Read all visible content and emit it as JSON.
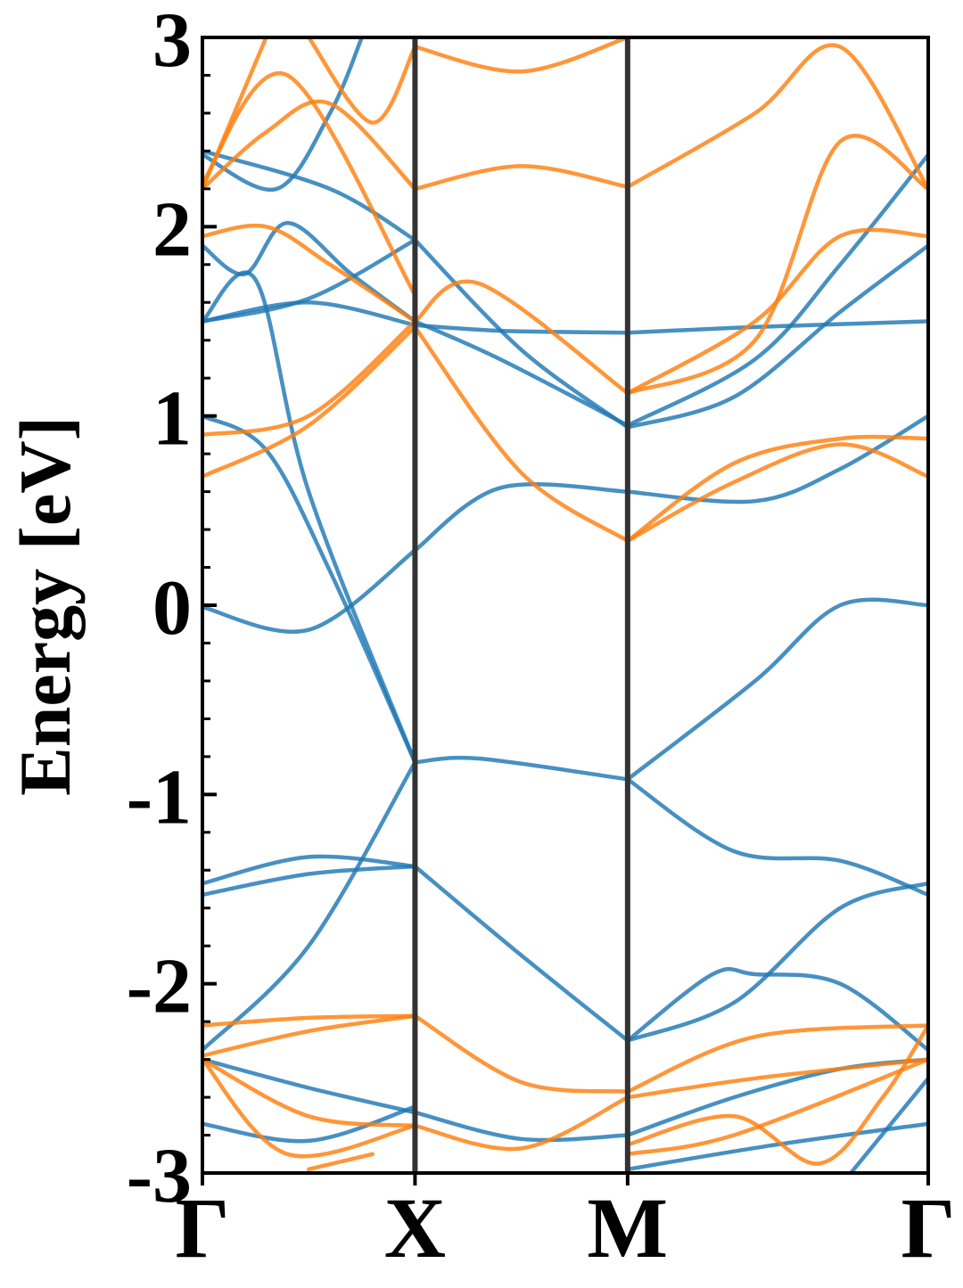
{
  "chart_data": {
    "type": "line",
    "title": "",
    "ylabel": "Energy [eV]",
    "xlabel": "",
    "ylim": [
      -3,
      3
    ],
    "yticks": [
      "-3",
      "-2",
      "-1",
      "0",
      "1",
      "2",
      "3"
    ],
    "high_symmetry_points": [
      {
        "label": "Γ",
        "k": 0.0
      },
      {
        "label": "X",
        "k": 1.0
      },
      {
        "label": "M",
        "k": 2.0
      },
      {
        "label": "Γ",
        "k": 3.414
      }
    ],
    "grid": false,
    "legend": "none",
    "colors": {
      "series_a": "#1f77b4",
      "series_b": "#ff7f0e",
      "kline": "#333333"
    },
    "series": [
      {
        "color_key": "series_a",
        "bands": [
          {
            "k": [
              0,
              0.5,
              1.0
            ],
            "e": [
              -0.01,
              -0.13,
              0.29
            ]
          },
          {
            "k": [
              1.0,
              1.4,
              2.0
            ],
            "e": [
              0.29,
              0.62,
              0.6
            ]
          },
          {
            "k": [
              2.0,
              2.6,
              3.0,
              3.414
            ],
            "e": [
              0.6,
              0.55,
              0.72,
              1.0
            ]
          },
          {
            "k": [
              0,
              0.3,
              0.6,
              1.0
            ],
            "e": [
              1.0,
              0.82,
              0.18,
              -0.83
            ]
          },
          {
            "k": [
              1.0,
              1.3,
              2.0
            ],
            "e": [
              -0.83,
              -0.81,
              -0.92
            ]
          },
          {
            "k": [
              2.0,
              2.6,
              3.0,
              3.414
            ],
            "e": [
              -0.92,
              -0.4,
              0.0,
              0.0
            ]
          },
          {
            "k": [
              0,
              0.25,
              0.5,
              1.0
            ],
            "e": [
              1.5,
              1.72,
              0.6,
              -0.83
            ]
          },
          {
            "k": [
              0,
              0.5,
              1.0
            ],
            "e": [
              1.5,
              1.6,
              1.48
            ]
          },
          {
            "k": [
              1.0,
              1.4,
              2.0
            ],
            "e": [
              1.48,
              1.45,
              1.44
            ]
          },
          {
            "k": [
              2.0,
              2.6,
              3.414
            ],
            "e": [
              1.44,
              1.47,
              1.5
            ]
          },
          {
            "k": [
              0,
              0.6,
              1.0
            ],
            "e": [
              2.4,
              2.2,
              1.93
            ]
          },
          {
            "k": [
              1.0,
              1.5,
              2.0
            ],
            "e": [
              1.93,
              1.35,
              0.94
            ]
          },
          {
            "k": [
              2.0,
              2.5,
              3.0,
              3.414
            ],
            "e": [
              0.94,
              1.1,
              1.55,
              1.9
            ]
          },
          {
            "k": [
              0,
              0.5,
              1.0
            ],
            "e": [
              1.5,
              1.62,
              1.93
            ]
          },
          {
            "k": [
              0,
              0.2,
              0.4,
              0.7,
              1.0
            ],
            "e": [
              1.9,
              1.75,
              2.02,
              1.75,
              1.5
            ]
          },
          {
            "k": [
              1.0,
              1.4,
              2.0
            ],
            "e": [
              1.5,
              1.3,
              0.95
            ]
          },
          {
            "k": [
              2.0,
              2.6,
              3.0,
              3.414
            ],
            "e": [
              0.95,
              1.3,
              1.8,
              2.38
            ]
          },
          {
            "k": [
              0,
              0.35,
              0.6,
              0.75
            ],
            "e": [
              2.38,
              2.2,
              2.6,
              3.0
            ]
          },
          {
            "k": [
              0,
              0.5,
              1.0
            ],
            "e": [
              -1.47,
              -1.33,
              -1.38
            ]
          },
          {
            "k": [
              0,
              0.5,
              1.0
            ],
            "e": [
              -1.53,
              -1.42,
              -1.38
            ]
          },
          {
            "k": [
              1.0,
              1.5,
              2.0
            ],
            "e": [
              -1.38,
              -1.85,
              -2.3
            ]
          },
          {
            "k": [
              2.0,
              2.5,
              3.0,
              3.414
            ],
            "e": [
              -2.3,
              -2.1,
              -1.6,
              -1.47
            ]
          },
          {
            "k": [
              2.0,
              2.5,
              3.0,
              3.414
            ],
            "e": [
              -0.92,
              -1.3,
              -1.35,
              -1.53
            ]
          },
          {
            "k": [
              2.0,
              2.4,
              2.6,
              3.0,
              3.414
            ],
            "e": [
              -2.3,
              -1.95,
              -1.95,
              -2.0,
              -2.35
            ]
          },
          {
            "k": [
              0,
              0.5,
              1.0
            ],
            "e": [
              -2.35,
              -1.8,
              -0.83
            ]
          },
          {
            "k": [
              0,
              0.5,
              1.0
            ],
            "e": [
              -2.4,
              -2.55,
              -2.68
            ]
          },
          {
            "k": [
              0,
              0.5,
              1.0
            ],
            "e": [
              -2.74,
              -2.83,
              -2.65
            ]
          },
          {
            "k": [
              1.0,
              1.5,
              2.0
            ],
            "e": [
              -2.68,
              -2.82,
              -2.8
            ]
          },
          {
            "k": [
              2.0,
              2.5,
              3.0,
              3.414
            ],
            "e": [
              -2.8,
              -2.6,
              -2.45,
              -2.4
            ]
          },
          {
            "k": [
              2.0,
              2.7,
              3.414
            ],
            "e": [
              -2.98,
              -2.85,
              -2.74
            ]
          },
          {
            "k": [
              3.05,
              3.414
            ],
            "e": [
              -3.0,
              -2.5
            ]
          }
        ]
      },
      {
        "color_key": "series_b",
        "bands": [
          {
            "k": [
              0,
              0.5,
              1.0
            ],
            "e": [
              0.68,
              0.95,
              1.47
            ]
          },
          {
            "k": [
              0,
              0.5,
              1.0
            ],
            "e": [
              0.9,
              1.0,
              1.5
            ]
          },
          {
            "k": [
              1.0,
              1.5,
              2.0
            ],
            "e": [
              1.47,
              0.7,
              0.34
            ]
          },
          {
            "k": [
              2.0,
              2.5,
              3.0,
              3.414
            ],
            "e": [
              0.34,
              0.75,
              0.88,
              0.88
            ]
          },
          {
            "k": [
              2.0,
              2.5,
              3.0,
              3.414
            ],
            "e": [
              0.34,
              0.65,
              0.85,
              0.68
            ]
          },
          {
            "k": [
              0,
              0.3,
              0.6,
              1.0
            ],
            "e": [
              1.95,
              2.0,
              1.8,
              1.5
            ]
          },
          {
            "k": [
              1.0,
              1.3,
              2.0
            ],
            "e": [
              1.5,
              1.7,
              1.12
            ]
          },
          {
            "k": [
              2.0,
              2.6,
              3.0,
              3.414
            ],
            "e": [
              1.12,
              1.5,
              1.95,
              1.95
            ]
          },
          {
            "k": [
              0,
              0.3,
              0.6,
              1.0
            ],
            "e": [
              2.2,
              2.5,
              2.65,
              2.2
            ]
          },
          {
            "k": [
              1.0,
              1.5,
              2.0
            ],
            "e": [
              2.2,
              2.32,
              2.21
            ]
          },
          {
            "k": [
              2.0,
              2.6,
              3.0,
              3.414
            ],
            "e": [
              2.21,
              2.6,
              2.95,
              2.2
            ]
          },
          {
            "k": [
              0,
              0.4,
              1.0
            ],
            "e": [
              2.23,
              2.8,
              1.64
            ]
          },
          {
            "k": [
              0,
              0.3
            ],
            "e": [
              2.2,
              3.0
            ]
          },
          {
            "k": [
              0.5,
              0.8,
              1.0
            ],
            "e": [
              3.0,
              2.55,
              2.95
            ]
          },
          {
            "k": [
              1.0,
              1.5,
              2.0
            ],
            "e": [
              2.95,
              2.82,
              3.0
            ]
          },
          {
            "k": [
              2.0,
              2.6,
              3.0,
              3.414
            ],
            "e": [
              1.12,
              1.4,
              2.45,
              2.2
            ]
          },
          {
            "k": [
              0,
              0.5,
              1.0
            ],
            "e": [
              -2.22,
              -2.18,
              -2.17
            ]
          },
          {
            "k": [
              0,
              0.5,
              1.0
            ],
            "e": [
              -2.38,
              -2.25,
              -2.17
            ]
          },
          {
            "k": [
              1.0,
              1.5,
              2.0
            ],
            "e": [
              -2.17,
              -2.52,
              -2.57
            ]
          },
          {
            "k": [
              2.0,
              2.6,
              3.414
            ],
            "e": [
              -2.57,
              -2.28,
              -2.22
            ]
          },
          {
            "k": [
              0,
              0.5,
              1.0
            ],
            "e": [
              -2.4,
              -2.7,
              -2.75
            ]
          },
          {
            "k": [
              1.0,
              1.5,
              2.0
            ],
            "e": [
              -2.75,
              -2.87,
              -2.6
            ]
          },
          {
            "k": [
              2.0,
              2.6,
              3.414
            ],
            "e": [
              -2.6,
              -2.5,
              -2.4
            ]
          },
          {
            "k": [
              0,
              0.4,
              1.0
            ],
            "e": [
              -2.4,
              -2.9,
              -2.75
            ]
          },
          {
            "k": [
              2.0,
              2.5,
              2.9,
              3.2,
              3.414
            ],
            "e": [
              -2.85,
              -2.7,
              -2.95,
              -2.6,
              -2.22
            ]
          },
          {
            "k": [
              0.5,
              0.8
            ],
            "e": [
              -2.98,
              -2.9
            ]
          },
          {
            "k": [
              2.0,
              2.5,
              3.414
            ],
            "e": [
              -2.9,
              -2.8,
              -2.4
            ]
          }
        ]
      }
    ]
  }
}
